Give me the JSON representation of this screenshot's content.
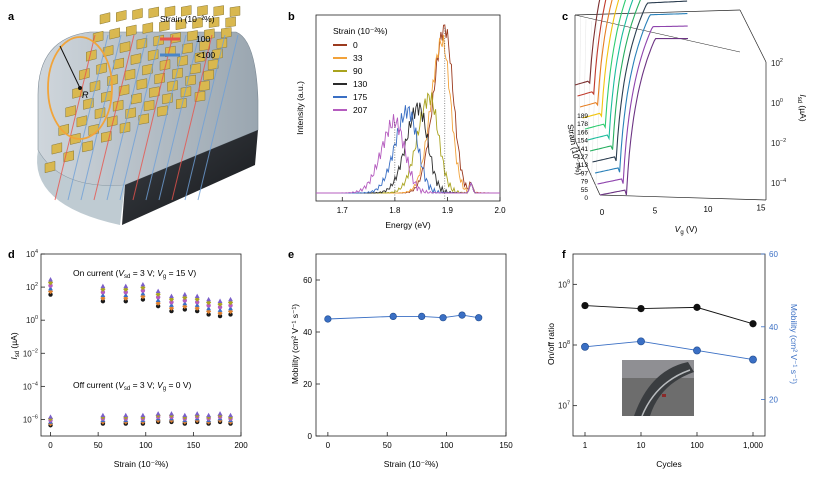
{
  "chart_data": [
    {
      "panel": "a",
      "type": "other",
      "legend_title": "Strain (10⁻²%)",
      "legend": [
        {
          "label": "100",
          "color": "#e8534c"
        },
        {
          "label": "<100",
          "color": "#4a86c8"
        }
      ],
      "radius_label": "R"
    },
    {
      "panel": "b",
      "type": "line",
      "xlabel": "Energy (eV)",
      "ylabel": "Intensity (a.u.)",
      "xlim": [
        1.65,
        2.0
      ],
      "xticks": [
        "1.7",
        "1.8",
        "1.9",
        "2.0"
      ],
      "legend_title": "Strain (10⁻²%)",
      "series": [
        {
          "name": "0",
          "color": "#9b3a1e",
          "peak_energy": 1.895,
          "peak_intensity": 1.0,
          "width": 0.03
        },
        {
          "name": "33",
          "color": "#f2a23a",
          "peak_energy": 1.89,
          "peak_intensity": 0.92,
          "width": 0.03
        },
        {
          "name": "90",
          "color": "#a9a31f",
          "peak_energy": 1.866,
          "peak_intensity": 0.58,
          "width": 0.032
        },
        {
          "name": "130",
          "color": "#2b2b2b",
          "peak_energy": 1.845,
          "peak_intensity": 0.52,
          "width": 0.033
        },
        {
          "name": "175",
          "color": "#3a6fc4",
          "peak_energy": 1.825,
          "peak_intensity": 0.5,
          "width": 0.034
        },
        {
          "name": "207",
          "color": "#b55cbf",
          "peak_energy": 1.8,
          "peak_intensity": 0.43,
          "width": 0.036
        }
      ]
    },
    {
      "panel": "c",
      "type": "line",
      "xlabel": "V",
      "xlabel_sub": "g",
      "xlabel_unit": " (V)",
      "xlim": [
        0,
        15
      ],
      "xticks": [
        "0",
        "5",
        "10",
        "15"
      ],
      "zlabel": "I",
      "zlabel_sub": "sd",
      "zlabel_unit": " (µA)",
      "zlim": [
        -5,
        2
      ],
      "zticks": [
        {
          "base": "10",
          "exp": "2"
        },
        {
          "base": "10",
          "exp": "0"
        },
        {
          "base": "10",
          "exp": "−2"
        },
        {
          "base": "10",
          "exp": "−4"
        }
      ],
      "strain_label": "Strain (10⁻²%)",
      "strain_values": [
        "189",
        "178",
        "166",
        "154",
        "141",
        "127",
        "113",
        "97",
        "79",
        "55",
        "0"
      ],
      "colors": [
        "#7b2f2f",
        "#c0392b",
        "#e67e22",
        "#f1c40f",
        "#2ecc71",
        "#1abc9c",
        "#27ae60",
        "#2c3e50",
        "#2980b9",
        "#8e44ad",
        "#6c3483"
      ]
    },
    {
      "panel": "d",
      "type": "scatter",
      "xlabel": "Strain (10⁻²%)",
      "ylabel": "I",
      "ylabel_sub": "sd",
      "ylabel_unit": " (µA)",
      "xlim": [
        -10,
        200
      ],
      "xticks": [
        0,
        50,
        100,
        150,
        200
      ],
      "ylim": [
        -7,
        4
      ],
      "yticks": [
        {
          "base": "10",
          "exp": "4"
        },
        {
          "base": "10",
          "exp": "2"
        },
        {
          "base": "10",
          "exp": "0"
        },
        {
          "base": "10",
          "exp": "−2"
        },
        {
          "base": "10",
          "exp": "−4"
        },
        {
          "base": "10",
          "exp": "−6"
        }
      ],
      "on_label": {
        "text": "On current (",
        "v1": "V",
        "v1sub": "sd",
        "v1val": " = 3 V; ",
        "v2": "V",
        "v2sub": "g",
        "v2val": " = 15 V)"
      },
      "off_label": {
        "text": "Off current (",
        "v1": "V",
        "v1sub": "sd",
        "v1val": " = 3 V; ",
        "v2": "V",
        "v2sub": "g",
        "v2val": " = 0 V)"
      },
      "x": [
        0,
        55,
        79,
        97,
        113,
        127,
        141,
        154,
        166,
        178,
        189
      ],
      "on_log": [
        2.0,
        1.6,
        1.6,
        1.7,
        1.3,
        1.0,
        1.1,
        1.0,
        0.8,
        0.7,
        0.8
      ],
      "off_log": [
        -6.1,
        -6.0,
        -6.0,
        -6.0,
        -5.9,
        -5.9,
        -6.0,
        -5.9,
        -6.0,
        -5.9,
        -6.0
      ],
      "marker_colors": [
        "#1a1a1a",
        "#e0812f",
        "#3a6fc4",
        "#b55cbf",
        "#a9a31f",
        "#7b5fc9"
      ]
    },
    {
      "panel": "e",
      "type": "scatter",
      "xlabel": "Strain (10⁻²%)",
      "ylabel": "Mobility (cm² V⁻¹ s⁻¹)",
      "xlim": [
        -10,
        150
      ],
      "xticks": [
        0,
        50,
        100,
        150
      ],
      "ylim": [
        0,
        70
      ],
      "yticks": [
        0,
        20,
        40,
        60
      ],
      "x": [
        0,
        55,
        79,
        97,
        113,
        127
      ],
      "y": [
        45,
        46,
        46,
        45.5,
        46.5,
        45.5
      ],
      "color": "#3a6fc4"
    },
    {
      "panel": "f",
      "type": "line",
      "xlabel": "Cycles",
      "xticks": [
        "1",
        "10",
        "100",
        "1,000"
      ],
      "ylabel_left": "On/off ratio",
      "ylabel_right": "Mobility (cm² V⁻¹ s⁻¹)",
      "yticks_left": [
        {
          "base": "10",
          "exp": "9"
        },
        {
          "base": "10",
          "exp": "8"
        },
        {
          "base": "10",
          "exp": "7"
        }
      ],
      "ylim_left_log": [
        6.5,
        9.5
      ],
      "yticks_right": [
        20,
        40,
        60
      ],
      "ylim_right": [
        10,
        60
      ],
      "cycles_log": [
        0,
        1,
        2,
        3
      ],
      "onoff_log": [
        8.65,
        8.6,
        8.62,
        8.35
      ],
      "mobility": [
        34.5,
        36,
        33.5,
        31
      ],
      "left_color": "#111111",
      "right_color": "#3a6fc4"
    }
  ],
  "panel_letters": [
    "a",
    "b",
    "c",
    "d",
    "e",
    "f"
  ]
}
